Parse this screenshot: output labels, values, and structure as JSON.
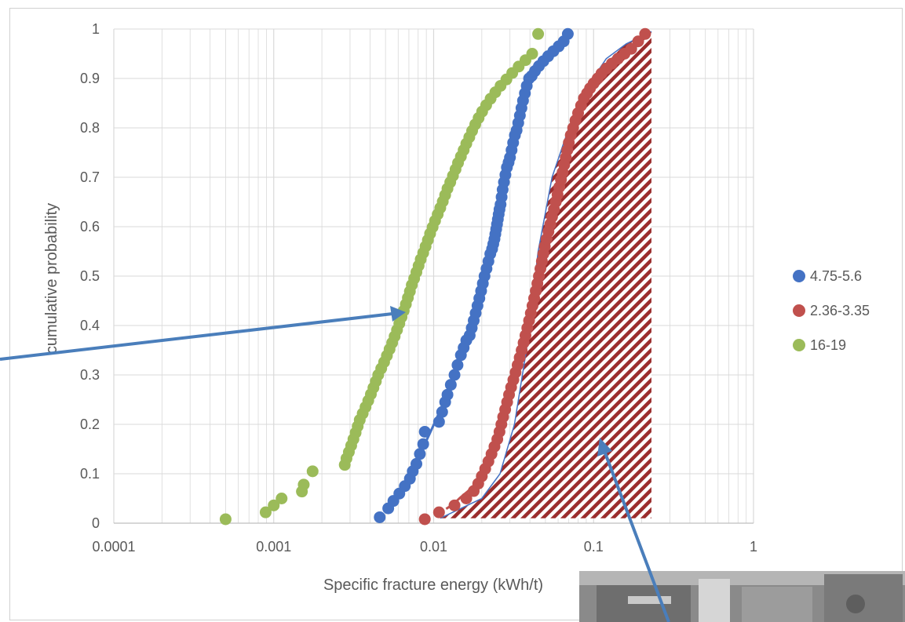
{
  "chart_data": {
    "type": "scatter",
    "title": "",
    "xlabel": "Specific fracture energy (kWh/t)",
    "ylabel": "cumulative probability",
    "xscale": "log",
    "xlim": [
      0.0001,
      1
    ],
    "ylim": [
      0,
      1
    ],
    "x_ticks": [
      "0.0001",
      "0.001",
      "0.01",
      "0.1",
      "1"
    ],
    "y_ticks": [
      "0",
      "0.1",
      "0.2",
      "0.3",
      "0.4",
      "0.5",
      "0.6",
      "0.7",
      "0.8",
      "0.9",
      "1"
    ],
    "grid": true,
    "legend_position": "right",
    "series": [
      {
        "name": "4.75-5.6",
        "color": "#4472c4",
        "fit_curve": true,
        "x": [
          0.0046,
          0.0052,
          0.0056,
          0.0061,
          0.0066,
          0.0071,
          0.0074,
          0.0078,
          0.0082,
          0.0086,
          0.0088,
          0.0108,
          0.0113,
          0.0118,
          0.0122,
          0.0128,
          0.0135,
          0.0141,
          0.0148,
          0.0154,
          0.016,
          0.0168,
          0.0173,
          0.0178,
          0.0183,
          0.0188,
          0.0193,
          0.0198,
          0.0203,
          0.0208,
          0.0214,
          0.022,
          0.0226,
          0.0232,
          0.0236,
          0.024,
          0.0243,
          0.0246,
          0.0249,
          0.0252,
          0.0255,
          0.0258,
          0.0262,
          0.0266,
          0.027,
          0.0275,
          0.0281,
          0.0287,
          0.0294,
          0.03,
          0.0307,
          0.0314,
          0.0322,
          0.033,
          0.0338,
          0.0346,
          0.0354,
          0.0362,
          0.0372,
          0.0382,
          0.0395,
          0.041,
          0.043,
          0.0455,
          0.0485,
          0.052,
          0.056,
          0.0605,
          0.065,
          0.069
        ],
        "y": [
          0.012,
          0.03,
          0.045,
          0.06,
          0.075,
          0.09,
          0.105,
          0.12,
          0.14,
          0.16,
          0.185,
          0.205,
          0.225,
          0.245,
          0.26,
          0.28,
          0.3,
          0.32,
          0.34,
          0.355,
          0.37,
          0.38,
          0.395,
          0.41,
          0.425,
          0.44,
          0.455,
          0.47,
          0.485,
          0.5,
          0.515,
          0.53,
          0.545,
          0.555,
          0.565,
          0.575,
          0.585,
          0.595,
          0.605,
          0.615,
          0.625,
          0.635,
          0.645,
          0.66,
          0.675,
          0.69,
          0.705,
          0.72,
          0.73,
          0.74,
          0.755,
          0.77,
          0.785,
          0.795,
          0.81,
          0.825,
          0.84,
          0.855,
          0.87,
          0.885,
          0.9,
          0.905,
          0.915,
          0.925,
          0.935,
          0.945,
          0.955,
          0.965,
          0.975,
          0.99
        ]
      },
      {
        "name": "2.36-3.35",
        "color": "#c0504d",
        "fit_curve": true,
        "x": [
          0.0088,
          0.0108,
          0.0135,
          0.016,
          0.0178,
          0.019,
          0.02,
          0.021,
          0.022,
          0.023,
          0.024,
          0.025,
          0.0258,
          0.0265,
          0.0272,
          0.028,
          0.0288,
          0.0296,
          0.0305,
          0.0315,
          0.0325,
          0.0335,
          0.0345,
          0.0355,
          0.0365,
          0.0375,
          0.0385,
          0.0395,
          0.0405,
          0.0415,
          0.0425,
          0.0435,
          0.0445,
          0.0455,
          0.0465,
          0.0475,
          0.0485,
          0.0495,
          0.0508,
          0.0522,
          0.0536,
          0.055,
          0.0565,
          0.058,
          0.0595,
          0.061,
          0.0625,
          0.064,
          0.0655,
          0.067,
          0.0685,
          0.07,
          0.072,
          0.0745,
          0.077,
          0.08,
          0.0835,
          0.087,
          0.091,
          0.095,
          0.1,
          0.106,
          0.112,
          0.12,
          0.13,
          0.142,
          0.156,
          0.172,
          0.19,
          0.21
        ],
        "y": [
          0.008,
          0.022,
          0.036,
          0.05,
          0.065,
          0.08,
          0.095,
          0.11,
          0.125,
          0.14,
          0.155,
          0.17,
          0.185,
          0.2,
          0.215,
          0.23,
          0.245,
          0.26,
          0.275,
          0.29,
          0.305,
          0.32,
          0.335,
          0.35,
          0.365,
          0.38,
          0.395,
          0.41,
          0.425,
          0.44,
          0.455,
          0.47,
          0.485,
          0.5,
          0.515,
          0.53,
          0.545,
          0.56,
          0.575,
          0.59,
          0.605,
          0.62,
          0.635,
          0.65,
          0.665,
          0.68,
          0.695,
          0.71,
          0.725,
          0.74,
          0.755,
          0.77,
          0.785,
          0.8,
          0.815,
          0.83,
          0.845,
          0.86,
          0.87,
          0.88,
          0.89,
          0.9,
          0.91,
          0.92,
          0.93,
          0.94,
          0.95,
          0.96,
          0.975,
          0.99
        ]
      },
      {
        "name": "16-19",
        "color": "#9bbb59",
        "fit_curve": false,
        "x": [
          0.0005,
          0.00089,
          0.001,
          0.00112,
          0.0015,
          0.00154,
          0.00175,
          0.00278,
          0.00285,
          0.00295,
          0.00305,
          0.00315,
          0.00325,
          0.00335,
          0.00345,
          0.0036,
          0.00375,
          0.0039,
          0.00405,
          0.0042,
          0.00435,
          0.0045,
          0.0047,
          0.0049,
          0.0051,
          0.0053,
          0.0055,
          0.0057,
          0.0059,
          0.0061,
          0.0063,
          0.0065,
          0.0067,
          0.0069,
          0.0071,
          0.0073,
          0.00755,
          0.0078,
          0.00805,
          0.0083,
          0.0086,
          0.0089,
          0.0092,
          0.0095,
          0.00985,
          0.0102,
          0.0106,
          0.011,
          0.0114,
          0.0118,
          0.0122,
          0.0127,
          0.0132,
          0.0137,
          0.0142,
          0.0148,
          0.0154,
          0.016,
          0.0167,
          0.0174,
          0.0182,
          0.0191,
          0.0201,
          0.0213,
          0.0227,
          0.0243,
          0.0262,
          0.0285,
          0.031,
          0.034,
          0.0375,
          0.0413,
          0.045
        ],
        "y": [
          0.008,
          0.022,
          0.036,
          0.05,
          0.064,
          0.078,
          0.105,
          0.118,
          0.131,
          0.144,
          0.157,
          0.17,
          0.183,
          0.196,
          0.209,
          0.222,
          0.235,
          0.248,
          0.261,
          0.274,
          0.287,
          0.3,
          0.313,
          0.326,
          0.339,
          0.352,
          0.365,
          0.378,
          0.391,
          0.404,
          0.417,
          0.43,
          0.443,
          0.456,
          0.469,
          0.482,
          0.495,
          0.508,
          0.521,
          0.534,
          0.547,
          0.56,
          0.573,
          0.586,
          0.599,
          0.612,
          0.625,
          0.638,
          0.651,
          0.664,
          0.677,
          0.69,
          0.703,
          0.716,
          0.729,
          0.742,
          0.755,
          0.768,
          0.781,
          0.794,
          0.807,
          0.82,
          0.833,
          0.846,
          0.859,
          0.872,
          0.885,
          0.898,
          0.911,
          0.924,
          0.937,
          0.95,
          0.99
        ]
      }
    ],
    "shaded_region": {
      "description_visible": false,
      "fill_color": "#9b2d2d",
      "outline_color": "#4472c4",
      "x_right": 0.23,
      "curve_x": [
        0.011,
        0.02,
        0.026,
        0.032,
        0.038,
        0.045,
        0.055,
        0.07,
        0.09,
        0.12,
        0.16,
        0.23
      ],
      "curve_y": [
        0.01,
        0.05,
        0.1,
        0.2,
        0.35,
        0.55,
        0.7,
        0.8,
        0.88,
        0.94,
        0.97,
        0.995
      ]
    }
  },
  "colors": {
    "grid": "#d9d9d9",
    "axis": "#bfbfbf",
    "text": "#595959",
    "arrow": "#4a7ebb"
  }
}
